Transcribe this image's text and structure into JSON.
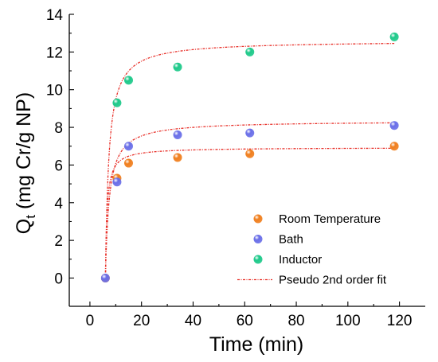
{
  "chart_data": {
    "type": "scatter",
    "title": "",
    "xlabel": "Time (min)",
    "ylabel": {
      "main": "Q",
      "subscript": "t",
      "rest": " (mg Cr/g NP)"
    },
    "xlim": [
      -8,
      130
    ],
    "ylim": [
      -1.5,
      14
    ],
    "xticks": [
      0,
      20,
      40,
      60,
      80,
      100,
      120
    ],
    "yticks": [
      0,
      2,
      4,
      6,
      8,
      10,
      12,
      14
    ],
    "grid": false,
    "legend_position": "bottom-right",
    "series": [
      {
        "name": "Room Temperature",
        "color": "#f07f1e",
        "x": [
          6,
          10.5,
          15,
          34,
          62,
          118
        ],
        "y": [
          0,
          5.3,
          6.1,
          6.4,
          6.6,
          7.0
        ]
      },
      {
        "name": "Bath",
        "color": "#6a6fe8",
        "x": [
          6,
          10.5,
          15,
          34,
          62,
          118
        ],
        "y": [
          0,
          5.1,
          7.0,
          7.6,
          7.7,
          8.1
        ]
      },
      {
        "name": "Inductor",
        "color": "#1ec98a",
        "x": [
          10.5,
          15,
          34,
          62,
          118
        ],
        "y": [
          9.3,
          10.5,
          11.2,
          12.0,
          12.8
        ]
      }
    ],
    "fit": {
      "name": "Pseudo 2nd order fit",
      "color": "#e8312a",
      "model": "pseudo-second-order",
      "t0": 6,
      "curves": [
        {
          "for": "Room Temperature",
          "qe": 6.93,
          "k": 0.225
        },
        {
          "for": "Bath",
          "qe": 8.35,
          "k": 0.08
        },
        {
          "for": "Inductor",
          "qe": 12.6,
          "k": 0.06
        }
      ],
      "x_range": [
        6,
        118
      ]
    }
  }
}
